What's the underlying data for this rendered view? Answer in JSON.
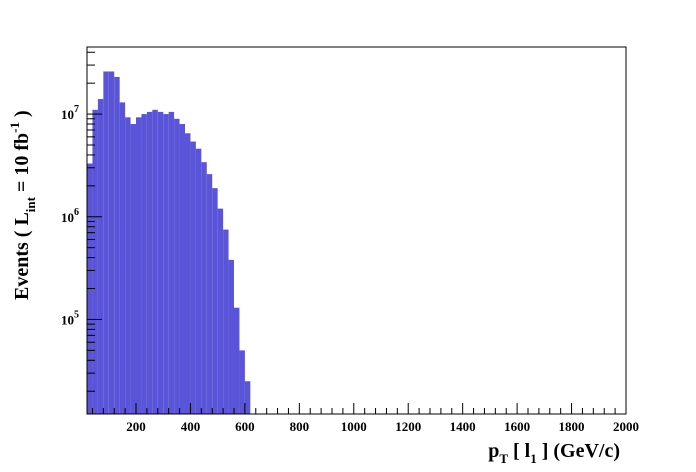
{
  "chart_data": {
    "type": "bar",
    "bin_width": 20,
    "x_start": 20,
    "xlim": [
      20,
      2000
    ],
    "ylim": [
      12000,
      45000000
    ],
    "yscale": "log",
    "grid": false,
    "legend": "none",
    "fill_color": "#5a55d8",
    "values": [
      3300000,
      11000000,
      14000000,
      26000000,
      26000000,
      23000000,
      13000000,
      9300000,
      8000000,
      9300000,
      10000000,
      10500000,
      11000000,
      10500000,
      10000000,
      10500000,
      9000000,
      8000000,
      6500000,
      5400000,
      4600000,
      3400000,
      2600000,
      1900000,
      1200000,
      750000,
      380000,
      130000,
      50000,
      25000,
      0
    ],
    "x_ticks": [
      "200",
      "400",
      "600",
      "800",
      "1000",
      "1200",
      "1400",
      "1600",
      "1800",
      "2000"
    ],
    "y_ticks": [
      {
        "value": 10000000,
        "base": "10",
        "exp": "7"
      },
      {
        "value": 1000000,
        "base": "10",
        "exp": "6"
      },
      {
        "value": 100000,
        "base": "10",
        "exp": "5"
      }
    ],
    "xlabel": {
      "main": "p",
      "sub": "T",
      "mid": " [ l",
      "sub2": "1",
      "tail": " ] (GeV/c)"
    },
    "ylabel": {
      "pre": "Events  ( L",
      "sub": "int",
      "mid": " = 10 fb",
      "sup": "-1",
      "post": " )"
    }
  }
}
